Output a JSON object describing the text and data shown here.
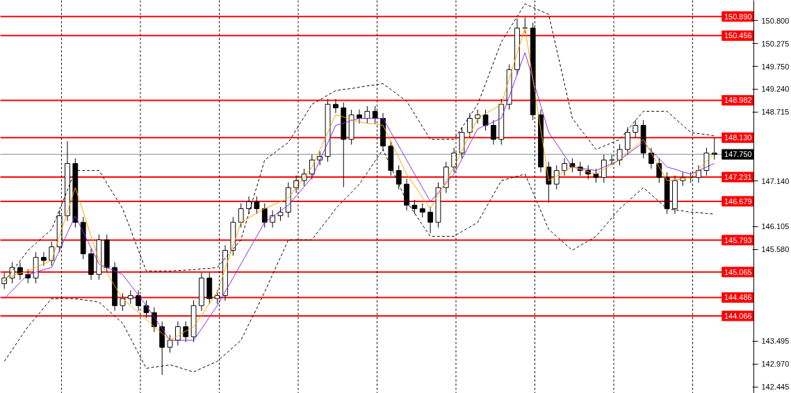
{
  "chart_data": {
    "type": "candlestick",
    "categories": [
      null,
      null,
      null,
      null,
      null,
      null,
      null,
      null,
      null,
      null,
      null,
      null,
      null,
      null,
      null,
      null,
      null,
      null,
      null,
      null,
      null,
      null,
      null,
      null,
      null,
      null,
      null,
      null,
      null,
      null,
      null,
      null,
      null,
      null,
      null,
      null,
      null,
      null,
      null,
      null,
      null,
      null,
      null,
      null,
      null,
      null,
      null,
      null,
      null,
      null,
      null,
      null,
      null,
      null,
      null,
      null,
      null,
      null,
      null,
      null,
      null,
      null,
      null,
      null,
      null,
      null,
      null,
      null,
      null,
      null,
      null,
      null,
      null,
      null,
      null,
      null,
      null,
      null,
      null,
      null,
      null,
      null,
      null,
      null,
      null,
      null,
      null,
      null,
      null,
      null,
      null
    ],
    "ohlc": [
      [
        144.8,
        145.05,
        144.68,
        144.93
      ],
      [
        144.93,
        145.29,
        144.81,
        145.17
      ],
      [
        145.17,
        145.29,
        144.89,
        145.01
      ],
      [
        145.01,
        145.13,
        144.81,
        144.93
      ],
      [
        144.93,
        145.52,
        144.81,
        145.4
      ],
      [
        145.4,
        145.52,
        145.21,
        145.33
      ],
      [
        145.33,
        145.76,
        145.21,
        145.64
      ],
      [
        145.64,
        146.47,
        145.52,
        146.35
      ],
      [
        146.35,
        148.05,
        146.23,
        147.54
      ],
      [
        147.54,
        147.66,
        146.08,
        146.2
      ],
      [
        146.2,
        146.32,
        145.36,
        145.48
      ],
      [
        145.48,
        145.6,
        144.89,
        145.01
      ],
      [
        145.01,
        145.92,
        144.89,
        145.8
      ],
      [
        145.8,
        145.92,
        145.05,
        145.17
      ],
      [
        145.17,
        145.29,
        144.18,
        144.3
      ],
      [
        144.3,
        144.58,
        144.18,
        144.46
      ],
      [
        144.46,
        144.65,
        144.34,
        144.53
      ],
      [
        144.53,
        144.65,
        144.18,
        144.3
      ],
      [
        144.3,
        144.42,
        144.02,
        144.14
      ],
      [
        144.14,
        144.26,
        143.7,
        143.82
      ],
      [
        143.82,
        143.94,
        142.72,
        143.35
      ],
      [
        143.35,
        143.63,
        143.23,
        143.51
      ],
      [
        143.51,
        143.94,
        143.39,
        143.82
      ],
      [
        143.82,
        143.94,
        143.47,
        143.59
      ],
      [
        143.59,
        144.42,
        143.47,
        144.3
      ],
      [
        144.3,
        145.05,
        144.18,
        144.93
      ],
      [
        144.93,
        145.05,
        144.34,
        144.46
      ],
      [
        144.46,
        144.65,
        144.34,
        144.53
      ],
      [
        144.53,
        145.68,
        144.41,
        145.56
      ],
      [
        145.56,
        146.32,
        145.44,
        146.2
      ],
      [
        146.2,
        146.63,
        146.08,
        146.51
      ],
      [
        146.51,
        146.79,
        146.39,
        146.67
      ],
      [
        146.67,
        146.79,
        146.39,
        146.51
      ],
      [
        146.51,
        146.63,
        146.08,
        146.2
      ],
      [
        146.2,
        146.47,
        146.08,
        146.35
      ],
      [
        146.35,
        146.55,
        146.23,
        146.43
      ],
      [
        146.43,
        147.11,
        146.31,
        146.99
      ],
      [
        146.99,
        147.27,
        146.87,
        147.15
      ],
      [
        147.15,
        147.42,
        147.03,
        147.3
      ],
      [
        147.3,
        147.74,
        147.18,
        147.62
      ],
      [
        147.62,
        147.82,
        147.5,
        147.7
      ],
      [
        147.7,
        149.01,
        147.58,
        148.89
      ],
      [
        148.89,
        149.01,
        148.69,
        148.81
      ],
      [
        148.81,
        148.93,
        147.0,
        148.09
      ],
      [
        148.09,
        148.77,
        147.97,
        148.65
      ],
      [
        148.65,
        148.77,
        148.45,
        148.57
      ],
      [
        148.57,
        148.85,
        148.45,
        148.73
      ],
      [
        148.73,
        148.85,
        148.45,
        148.57
      ],
      [
        148.57,
        148.69,
        147.82,
        147.94
      ],
      [
        147.94,
        148.06,
        147.26,
        147.38
      ],
      [
        147.38,
        147.5,
        146.95,
        147.07
      ],
      [
        147.07,
        147.19,
        146.47,
        146.59
      ],
      [
        146.59,
        146.71,
        146.39,
        146.51
      ],
      [
        146.51,
        146.63,
        146.31,
        146.43
      ],
      [
        146.43,
        146.55,
        145.95,
        146.2
      ],
      [
        146.2,
        147.11,
        146.08,
        146.99
      ],
      [
        146.99,
        147.58,
        146.87,
        147.46
      ],
      [
        147.46,
        147.9,
        147.34,
        147.78
      ],
      [
        147.78,
        148.37,
        147.66,
        148.25
      ],
      [
        148.25,
        148.69,
        148.13,
        148.57
      ],
      [
        148.57,
        148.77,
        148.45,
        148.65
      ],
      [
        148.65,
        148.77,
        148.29,
        148.41
      ],
      [
        148.41,
        148.53,
        147.97,
        148.09
      ],
      [
        148.09,
        149.01,
        147.97,
        148.89
      ],
      [
        148.89,
        149.8,
        148.77,
        149.68
      ],
      [
        149.68,
        150.85,
        149.56,
        150.63
      ],
      [
        150.63,
        150.87,
        150.51,
        150.63
      ],
      [
        150.63,
        150.75,
        148.53,
        148.65
      ],
      [
        148.65,
        148.77,
        147.34,
        147.46
      ],
      [
        147.46,
        147.58,
        146.65,
        147.07
      ],
      [
        147.07,
        147.5,
        146.95,
        147.38
      ],
      [
        147.38,
        147.66,
        147.26,
        147.54
      ],
      [
        147.54,
        147.66,
        147.34,
        147.46
      ],
      [
        147.46,
        147.58,
        147.26,
        147.38
      ],
      [
        147.38,
        147.5,
        147.18,
        147.3
      ],
      [
        147.3,
        147.42,
        147.1,
        147.22
      ],
      [
        147.22,
        147.74,
        147.1,
        147.62
      ],
      [
        147.62,
        147.74,
        147.5,
        147.62
      ],
      [
        147.62,
        147.98,
        147.5,
        147.86
      ],
      [
        147.86,
        148.37,
        147.74,
        148.25
      ],
      [
        148.25,
        148.53,
        148.13,
        148.41
      ],
      [
        148.41,
        148.53,
        147.66,
        147.78
      ],
      [
        147.78,
        147.9,
        147.42,
        147.54
      ],
      [
        147.54,
        147.66,
        147.1,
        147.22
      ],
      [
        147.22,
        147.34,
        146.39,
        146.51
      ],
      [
        146.51,
        147.27,
        146.39,
        147.15
      ],
      [
        147.15,
        147.34,
        147.03,
        147.22
      ],
      [
        147.22,
        147.34,
        147.1,
        147.22
      ],
      [
        147.22,
        147.5,
        147.1,
        147.38
      ],
      [
        147.38,
        147.9,
        147.26,
        147.78
      ],
      [
        147.78,
        148.12,
        147.63,
        147.75
      ]
    ],
    "series": [
      {
        "type": "line",
        "color": "#000000",
        "line_style": "dashed",
        "values": [
          144.85,
          145.09,
          145.32,
          145.56,
          145.72,
          145.88,
          146.04,
          146.49,
          146.93,
          147.38,
          147.38,
          147.38,
          147.38,
          147.09,
          146.8,
          146.51,
          146.04,
          145.56,
          145.09,
          145.09,
          145.09,
          145.09,
          145.1,
          145.11,
          145.12,
          145.14,
          145.15,
          145.17,
          145.38,
          145.59,
          145.8,
          146.41,
          147.01,
          147.62,
          147.75,
          147.89,
          148.02,
          148.31,
          148.6,
          148.89,
          148.99,
          149.1,
          149.2,
          149.23,
          149.25,
          149.28,
          149.31,
          149.33,
          149.36,
          149.23,
          149.09,
          148.96,
          148.67,
          148.38,
          148.09,
          148.09,
          148.09,
          148.09,
          148.36,
          148.62,
          148.89,
          149.36,
          149.84,
          150.31,
          150.6,
          150.89,
          151.18,
          151.1,
          151.02,
          150.94,
          150.15,
          149.36,
          148.57,
          148.33,
          148.1,
          147.86,
          147.94,
          148.01,
          148.09,
          148.3,
          148.52,
          148.73,
          148.73,
          148.73,
          148.73,
          148.57,
          148.41,
          148.25,
          148.22,
          148.2,
          148.17
        ]
      },
      {
        "type": "line",
        "color": "#000000",
        "line_style": "dashed",
        "values": [
          143.03,
          143.29,
          143.56,
          143.82,
          144.03,
          144.25,
          144.46,
          144.46,
          144.46,
          144.46,
          144.43,
          144.41,
          144.38,
          144.22,
          144.06,
          143.9,
          143.56,
          143.21,
          142.87,
          142.9,
          142.92,
          142.95,
          142.9,
          142.84,
          142.79,
          142.87,
          142.95,
          143.03,
          143.19,
          143.35,
          143.51,
          143.88,
          144.24,
          144.61,
          145.01,
          145.4,
          145.8,
          145.8,
          145.8,
          145.8,
          146.04,
          146.27,
          146.51,
          146.7,
          146.88,
          147.07,
          147.33,
          147.6,
          147.86,
          147.46,
          147.07,
          146.67,
          146.41,
          146.14,
          145.88,
          145.88,
          145.88,
          145.88,
          145.99,
          146.09,
          146.2,
          146.52,
          146.83,
          147.15,
          147.2,
          147.25,
          147.3,
          146.88,
          146.46,
          146.04,
          145.88,
          145.72,
          145.56,
          145.67,
          145.77,
          145.88,
          146.09,
          146.3,
          146.51,
          146.67,
          146.83,
          146.99,
          146.83,
          146.67,
          146.51,
          146.48,
          146.46,
          146.43,
          146.42,
          146.4,
          146.39
        ]
      },
      {
        "type": "line",
        "color": "#8a2be2",
        "line_style": "solid",
        "values": [
          144.46,
          144.64,
          144.83,
          145.01,
          145.06,
          145.12,
          145.17,
          145.56,
          145.96,
          146.35,
          145.98,
          145.62,
          145.25,
          145.17,
          145.09,
          145.01,
          144.77,
          144.54,
          144.3,
          144.04,
          143.77,
          143.51,
          143.51,
          143.51,
          143.51,
          143.77,
          144.04,
          144.3,
          144.62,
          144.93,
          145.25,
          145.57,
          145.88,
          146.2,
          146.33,
          146.46,
          146.59,
          146.8,
          147.01,
          147.22,
          147.62,
          148.01,
          148.41,
          148.46,
          148.52,
          148.57,
          148.57,
          148.57,
          148.57,
          148.25,
          147.94,
          147.62,
          147.3,
          146.99,
          146.67,
          146.88,
          147.09,
          147.3,
          147.64,
          147.99,
          148.33,
          148.41,
          148.49,
          148.57,
          149.07,
          149.57,
          150.07,
          149.46,
          148.86,
          148.25,
          147.99,
          147.72,
          147.46,
          147.43,
          147.41,
          147.38,
          147.46,
          147.54,
          147.62,
          147.75,
          147.89,
          148.02,
          147.83,
          147.65,
          147.46,
          147.41,
          147.35,
          147.3,
          147.38,
          147.46,
          147.54
        ]
      },
      {
        "type": "line",
        "color": "#ffa500",
        "line_style": "solid",
        "values": [
          144.93,
          144.98,
          145.04,
          145.09,
          145.17,
          145.25,
          145.33,
          145.88,
          146.44,
          146.99,
          146.44,
          145.88,
          145.33,
          145.04,
          144.75,
          144.46,
          144.3,
          144.14,
          143.98,
          143.82,
          143.67,
          143.51,
          143.61,
          143.72,
          143.82,
          144.08,
          144.35,
          144.61,
          145.14,
          145.67,
          146.2,
          146.3,
          146.41,
          146.51,
          146.59,
          146.67,
          146.75,
          146.99,
          147.22,
          147.46,
          147.86,
          148.25,
          148.65,
          148.6,
          148.54,
          148.49,
          148.46,
          148.44,
          148.41,
          148.04,
          147.67,
          147.3,
          147.04,
          146.77,
          146.51,
          146.83,
          147.14,
          147.46,
          147.83,
          148.2,
          148.57,
          148.68,
          148.78,
          148.89,
          149.47,
          150.05,
          150.63,
          149.47,
          148.31,
          147.15,
          147.25,
          147.36,
          147.46,
          147.41,
          147.35,
          147.3,
          147.41,
          147.51,
          147.62,
          147.78,
          147.93,
          148.09,
          147.78,
          147.46,
          147.15,
          147.17,
          147.2,
          147.22,
          147.41,
          147.59,
          147.78
        ]
      }
    ],
    "ylim": [
      142.3,
      151.26
    ],
    "yticks": [
      {
        "value": 150.8,
        "label": "150.800"
      },
      {
        "value": 150.275,
        "label": "150.275"
      },
      {
        "value": 149.75,
        "label": "149.750"
      },
      {
        "value": 149.24,
        "label": "149.240"
      },
      {
        "value": 148.715,
        "label": "148.715"
      },
      {
        "value": 147.14,
        "label": "147.140"
      },
      {
        "value": 146.105,
        "label": "146.105"
      },
      {
        "value": 145.58,
        "label": "145.580"
      },
      {
        "value": 143.495,
        "label": "143.495"
      },
      {
        "value": 142.97,
        "label": "142.970"
      },
      {
        "value": 142.445,
        "label": "142.445"
      }
    ],
    "ref_lines": [
      {
        "axis": "y",
        "value": 150.89,
        "label": "150.890",
        "color": "#ff0000"
      },
      {
        "axis": "y",
        "value": 150.456,
        "label": "150.456",
        "color": "#ff0000"
      },
      {
        "axis": "y",
        "value": 148.982,
        "label": "148.982",
        "color": "#ff0000"
      },
      {
        "axis": "y",
        "value": 148.13,
        "label": "148.130",
        "color": "#ff0000"
      },
      {
        "axis": "y",
        "value": 147.75,
        "label": "147.750",
        "color": "#778899"
      },
      {
        "axis": "y",
        "value": 147.231,
        "label": "147.231",
        "color": "#ff0000"
      },
      {
        "axis": "y",
        "value": 146.679,
        "label": "146.679",
        "color": "#ff0000"
      },
      {
        "axis": "y",
        "value": 145.793,
        "label": "145.793",
        "color": "#ff0000"
      },
      {
        "axis": "y",
        "value": 145.065,
        "label": "145.065",
        "color": "#ff0000"
      },
      {
        "axis": "y",
        "value": 144.486,
        "label": "144.486",
        "color": "#ff0000"
      },
      {
        "axis": "y",
        "value": 144.066,
        "label": "144.066",
        "color": "#ff0000"
      }
    ]
  }
}
